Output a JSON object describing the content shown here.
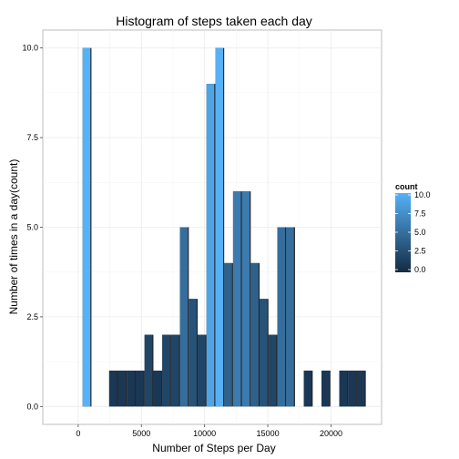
{
  "chart_data": {
    "type": "bar",
    "title": "Histogram of steps taken each day",
    "xlabel": "Number of Steps per Day",
    "ylabel": "Number of times in a day(count)",
    "xlim": [
      -2800,
      24000
    ],
    "ylim": [
      -0.5,
      10.5
    ],
    "binwidth": 700,
    "x_ticks": [
      0,
      5000,
      10000,
      15000,
      20000
    ],
    "x_tick_labels": [
      "0",
      "5000",
      "10000",
      "15000",
      "20000"
    ],
    "y_ticks": [
      0,
      2.5,
      5,
      7.5,
      10
    ],
    "y_tick_labels": [
      "0.0",
      "2.5",
      "5.0",
      "7.5",
      "10.0"
    ],
    "grid": true,
    "legend": {
      "title": "count",
      "placement": "right",
      "ticks": [
        0,
        2.5,
        5,
        7.5,
        10
      ],
      "tick_labels": [
        "0.0",
        "2.5",
        "5.0",
        "7.5",
        "10.0"
      ],
      "color_low": "#132b43",
      "color_high": "#56b1f7"
    },
    "bins": [
      {
        "x": 700,
        "count": 10
      },
      {
        "x": 2800,
        "count": 1
      },
      {
        "x": 3500,
        "count": 1
      },
      {
        "x": 4200,
        "count": 1
      },
      {
        "x": 4900,
        "count": 1
      },
      {
        "x": 5600,
        "count": 2
      },
      {
        "x": 6300,
        "count": 1
      },
      {
        "x": 7000,
        "count": 2
      },
      {
        "x": 7700,
        "count": 2
      },
      {
        "x": 8400,
        "count": 5
      },
      {
        "x": 9100,
        "count": 3
      },
      {
        "x": 9800,
        "count": 2
      },
      {
        "x": 10500,
        "count": 9
      },
      {
        "x": 11200,
        "count": 10
      },
      {
        "x": 11900,
        "count": 4
      },
      {
        "x": 12600,
        "count": 6
      },
      {
        "x": 13300,
        "count": 6
      },
      {
        "x": 14000,
        "count": 4
      },
      {
        "x": 14700,
        "count": 3
      },
      {
        "x": 15400,
        "count": 2
      },
      {
        "x": 16100,
        "count": 5
      },
      {
        "x": 16800,
        "count": 5
      },
      {
        "x": 18200,
        "count": 1
      },
      {
        "x": 19600,
        "count": 1
      },
      {
        "x": 21000,
        "count": 1
      },
      {
        "x": 21700,
        "count": 1
      },
      {
        "x": 22400,
        "count": 1
      }
    ]
  }
}
